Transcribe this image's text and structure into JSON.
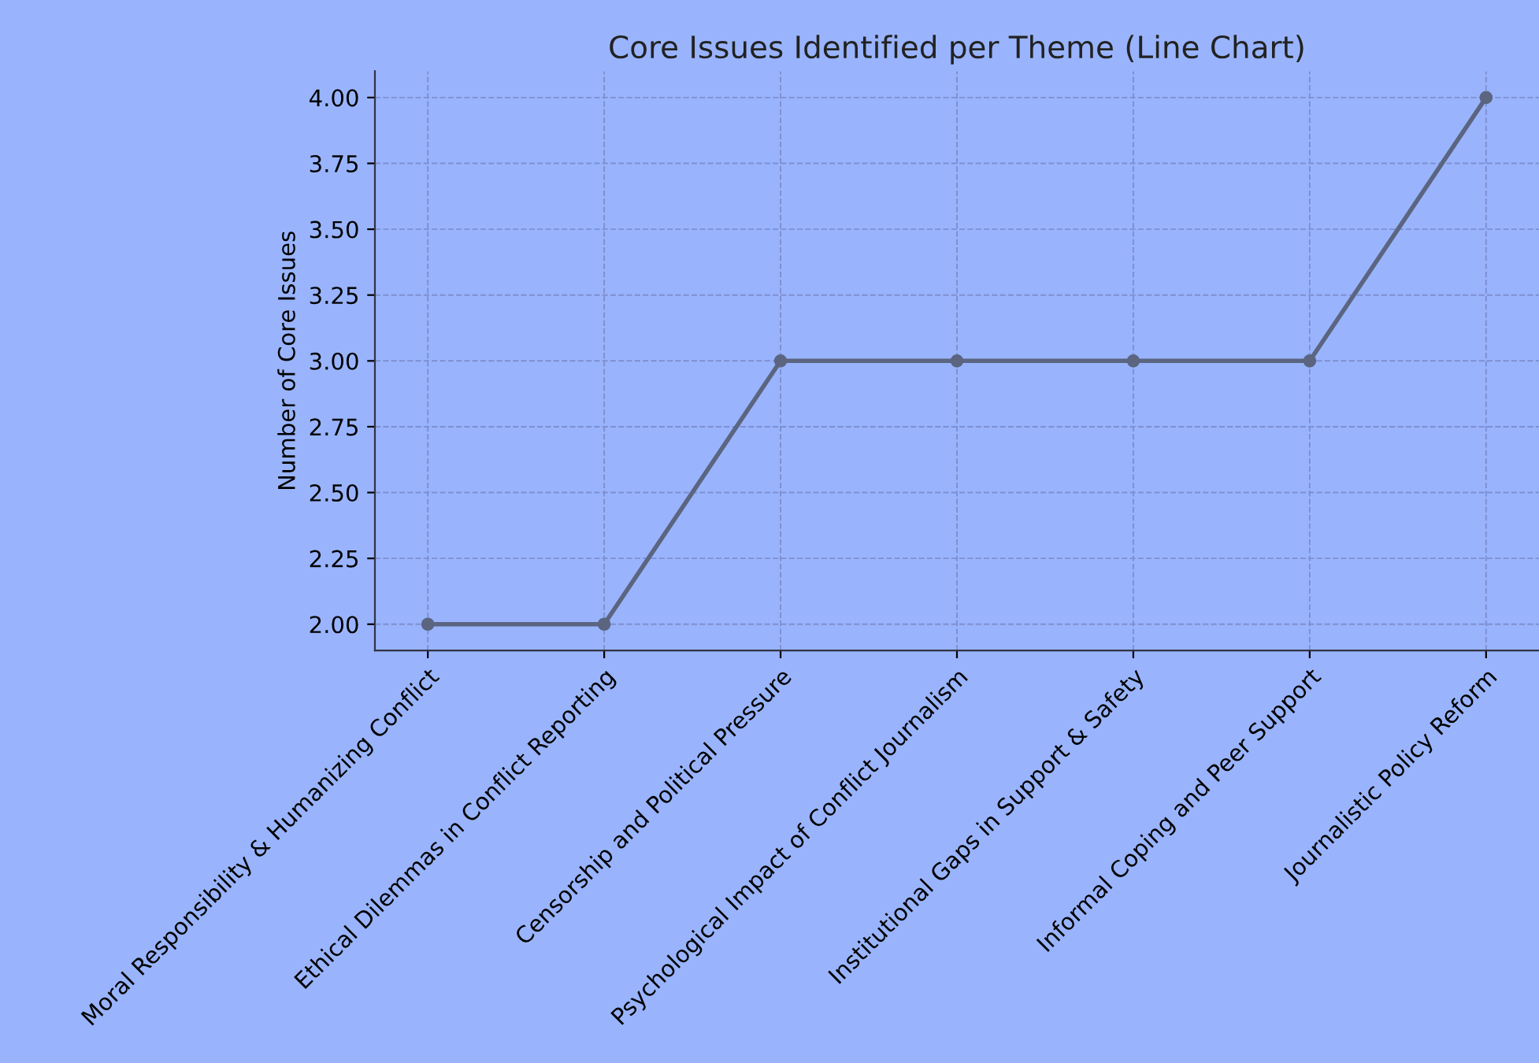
{
  "chart_data": {
    "type": "line",
    "title": "Core Issues Identified per Theme (Line Chart)",
    "ylabel": "Number of Core Issues",
    "categories": [
      "Moral Responsibility & Humanizing Conflict",
      "Ethical Dilemmas in Conflict Reporting",
      "Censorship and Political Pressure",
      "Psychological Impact of Conflict Journalism",
      "Institutional Gaps in Support & Safety",
      "Informal Coping and Peer Support",
      "Journalistic Policy Reform"
    ],
    "series": [
      {
        "color": "#5b6580",
        "values": [
          2,
          2,
          3,
          3,
          3,
          3,
          4
        ]
      }
    ],
    "ylim": [
      1.9,
      4.1
    ],
    "yticks": [
      {
        "value": 2,
        "label": "2.00"
      },
      {
        "value": 2.25,
        "label": "2.25"
      },
      {
        "value": 2.5,
        "label": "2.50"
      },
      {
        "value": 2.75,
        "label": "2.75"
      },
      {
        "value": 3,
        "label": "3.00"
      },
      {
        "value": 3.25,
        "label": "3.25"
      },
      {
        "value": 3.5,
        "label": "3.50"
      },
      {
        "value": 3.75,
        "label": "3.75"
      },
      {
        "value": 4,
        "label": "4.00"
      }
    ],
    "grid": true,
    "marker": "circle",
    "line_style": "solid"
  }
}
